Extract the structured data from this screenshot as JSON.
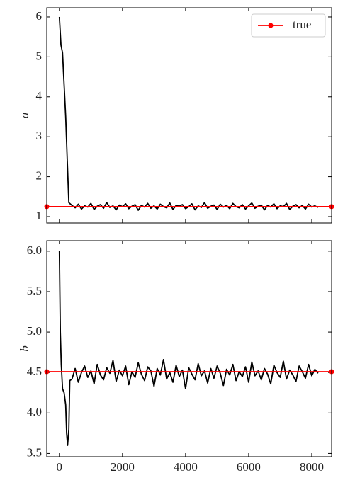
{
  "chart_data": [
    {
      "type": "line",
      "ylabel": "a",
      "xlim": [
        -400,
        8630
      ],
      "ylim": [
        0.84,
        6.23
      ],
      "xticks": [
        0,
        2000,
        4000,
        6000,
        8000
      ],
      "x_tick_labels": false,
      "yticks": [
        1,
        2,
        3,
        4,
        5,
        6
      ],
      "legend": "upper right",
      "series": [
        {
          "color": "#000000",
          "x": [
            0,
            50,
            100,
            150,
            200,
            250,
            300,
            400,
            500,
            600,
            700,
            800,
            900,
            1000,
            1100,
            1200,
            1300,
            1400,
            1500,
            1600,
            1700,
            1800,
            1900,
            2000,
            2100,
            2200,
            2300,
            2400,
            2500,
            2600,
            2700,
            2800,
            2900,
            3000,
            3100,
            3200,
            3300,
            3400,
            3500,
            3600,
            3700,
            3800,
            3900,
            4000,
            4100,
            4200,
            4300,
            4400,
            4500,
            4600,
            4700,
            4800,
            4900,
            5000,
            5100,
            5200,
            5300,
            5400,
            5500,
            5600,
            5700,
            5800,
            5900,
            6000,
            6100,
            6200,
            6300,
            6400,
            6500,
            6600,
            6700,
            6800,
            6900,
            7000,
            7100,
            7200,
            7300,
            7400,
            7500,
            7600,
            7700,
            7800,
            7900,
            8000,
            8100,
            8200
          ],
          "values": [
            6.0,
            5.3,
            5.1,
            4.3,
            3.5,
            2.4,
            1.35,
            1.28,
            1.22,
            1.31,
            1.19,
            1.27,
            1.24,
            1.33,
            1.18,
            1.26,
            1.3,
            1.21,
            1.35,
            1.23,
            1.27,
            1.17,
            1.29,
            1.25,
            1.32,
            1.2,
            1.26,
            1.3,
            1.16,
            1.28,
            1.24,
            1.33,
            1.21,
            1.27,
            1.19,
            1.31,
            1.25,
            1.22,
            1.34,
            1.18,
            1.28,
            1.26,
            1.3,
            1.2,
            1.25,
            1.32,
            1.17,
            1.27,
            1.23,
            1.35,
            1.21,
            1.26,
            1.29,
            1.18,
            1.31,
            1.24,
            1.28,
            1.2,
            1.33,
            1.25,
            1.22,
            1.3,
            1.19,
            1.27,
            1.34,
            1.21,
            1.26,
            1.29,
            1.17,
            1.28,
            1.24,
            1.32,
            1.2,
            1.27,
            1.25,
            1.33,
            1.18,
            1.26,
            1.3,
            1.22,
            1.28,
            1.19,
            1.31,
            1.24,
            1.27,
            1.23
          ]
        },
        {
          "name": "true",
          "color": "#ff0000",
          "marker": true,
          "x": [
            -400,
            8630
          ],
          "values": [
            1.25,
            1.25
          ]
        }
      ]
    },
    {
      "type": "line",
      "ylabel": "b",
      "xlim": [
        -400,
        8630
      ],
      "ylim": [
        3.46,
        6.13
      ],
      "xticks": [
        0,
        2000,
        4000,
        6000,
        8000
      ],
      "x_tick_labels": true,
      "yticks": [
        3.5,
        {
          "value": 4,
          "label": "4.0"
        },
        4.5,
        {
          "value": 5,
          "label": "5.0"
        },
        5.5,
        {
          "value": 6,
          "label": "6.0"
        }
      ],
      "series": [
        {
          "color": "#000000",
          "x": [
            0,
            30,
            60,
            100,
            150,
            200,
            230,
            260,
            300,
            330,
            400,
            500,
            600,
            700,
            800,
            900,
            1000,
            1100,
            1200,
            1300,
            1400,
            1500,
            1600,
            1700,
            1800,
            1900,
            2000,
            2100,
            2200,
            2300,
            2400,
            2500,
            2600,
            2700,
            2800,
            2900,
            3000,
            3100,
            3200,
            3300,
            3400,
            3500,
            3600,
            3700,
            3800,
            3900,
            4000,
            4100,
            4200,
            4300,
            4400,
            4500,
            4600,
            4700,
            4800,
            4900,
            5000,
            5100,
            5200,
            5300,
            5400,
            5500,
            5600,
            5700,
            5800,
            5900,
            6000,
            6100,
            6200,
            6300,
            6400,
            6500,
            6600,
            6700,
            6800,
            6900,
            7000,
            7100,
            7200,
            7300,
            7400,
            7500,
            7600,
            7700,
            7800,
            7900,
            8000,
            8100,
            8200
          ],
          "values": [
            6.0,
            5.0,
            4.6,
            4.3,
            4.25,
            4.1,
            3.75,
            3.6,
            3.8,
            4.4,
            4.42,
            4.55,
            4.38,
            4.5,
            4.58,
            4.44,
            4.52,
            4.36,
            4.6,
            4.47,
            4.41,
            4.56,
            4.49,
            4.65,
            4.39,
            4.53,
            4.46,
            4.58,
            4.35,
            4.51,
            4.44,
            4.62,
            4.48,
            4.4,
            4.57,
            4.52,
            4.33,
            4.55,
            4.47,
            4.66,
            4.42,
            4.5,
            4.38,
            4.59,
            4.45,
            4.53,
            4.3,
            4.56,
            4.48,
            4.41,
            4.61,
            4.46,
            4.52,
            4.37,
            4.55,
            4.43,
            4.58,
            4.49,
            4.34,
            4.54,
            4.47,
            4.6,
            4.4,
            4.51,
            4.45,
            4.57,
            4.38,
            4.63,
            4.46,
            4.52,
            4.41,
            4.55,
            4.48,
            4.36,
            4.59,
            4.5,
            4.44,
            4.64,
            4.42,
            4.53,
            4.47,
            4.39,
            4.58,
            4.51,
            4.43,
            4.6,
            4.46,
            4.54,
            4.49
          ]
        },
        {
          "color": "#ff0000",
          "marker": true,
          "x": [
            -400,
            8630
          ],
          "values": [
            4.51,
            4.51
          ]
        }
      ]
    }
  ]
}
